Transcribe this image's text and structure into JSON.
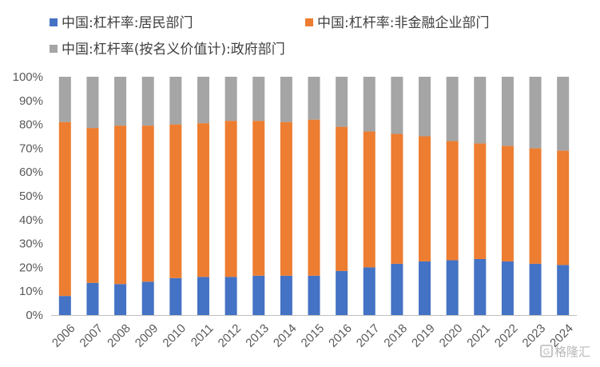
{
  "chart_data": {
    "type": "bar",
    "stacked": true,
    "percent_stacked": true,
    "title": "",
    "xlabel": "",
    "ylabel": "",
    "ylim": [
      0,
      100
    ],
    "y_ticks": [
      "0%",
      "10%",
      "20%",
      "30%",
      "40%",
      "50%",
      "60%",
      "70%",
      "80%",
      "90%",
      "100%"
    ],
    "categories": [
      "2006",
      "2007",
      "2008",
      "2009",
      "2010",
      "2011",
      "2012",
      "2013",
      "2014",
      "2015",
      "2016",
      "2017",
      "2018",
      "2019",
      "2020",
      "2021",
      "2022",
      "2023",
      "2024"
    ],
    "series": [
      {
        "name": "中国:杠杆率:居民部门",
        "color": "#4472c4",
        "values": [
          8,
          13.5,
          13,
          14,
          15.5,
          16,
          16,
          16.5,
          16.5,
          16.5,
          18.5,
          20,
          21.5,
          22.5,
          23,
          23.5,
          22.5,
          21.5,
          21
        ]
      },
      {
        "name": "中国:杠杆率:非金融企业部门",
        "color": "#ed7d31",
        "values": [
          73,
          65,
          66.5,
          65.5,
          64.5,
          64.5,
          65.5,
          65,
          64.5,
          65.5,
          60.5,
          57,
          54.5,
          52.5,
          50,
          48.5,
          48.5,
          48.5,
          48
        ]
      },
      {
        "name": "中国:杠杆率(按名义价值计):政府部门",
        "color": "#a5a5a5",
        "values": [
          19,
          21.5,
          20.5,
          20.5,
          20,
          19.5,
          18.5,
          18.5,
          19,
          18,
          21,
          23,
          24,
          25,
          27,
          28,
          29,
          30,
          31
        ]
      }
    ],
    "legend_position": "top",
    "grid": false
  },
  "watermark": {
    "icon": "gelonghui-logo-icon",
    "text": "格隆汇"
  }
}
